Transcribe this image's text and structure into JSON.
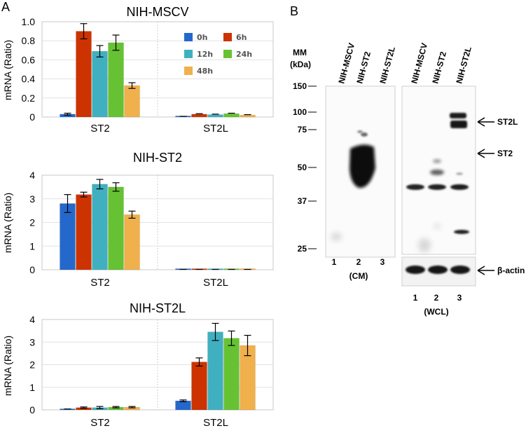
{
  "panel_a_label": "A",
  "panel_b_label": "B",
  "legend": [
    {
      "label": "0h",
      "color": "#2468cc"
    },
    {
      "label": "6h",
      "color": "#cc3300"
    },
    {
      "label": "12h",
      "color": "#40b0c0"
    },
    {
      "label": "24h",
      "color": "#66c233"
    },
    {
      "label": "48h",
      "color": "#f0b04c"
    }
  ],
  "chart_data": [
    {
      "type": "bar",
      "title": "NIH-MSCV",
      "ylabel": "mRNA (Ratio)",
      "xlabel": "",
      "categories": [
        "ST2",
        "ST2L"
      ],
      "ylim": [
        0,
        1.0
      ],
      "yticks": [
        "0",
        "0.2",
        "0.4",
        "0.6",
        "0.8",
        "1.0"
      ],
      "ytick_values": [
        0,
        0.2,
        0.4,
        0.6,
        0.8,
        1.0
      ],
      "series": [
        {
          "name": "0h",
          "values": [
            0.03,
            0.005
          ],
          "errors": [
            0.01,
            0.002
          ]
        },
        {
          "name": "6h",
          "values": [
            0.9,
            0.03
          ],
          "errors": [
            0.08,
            0.005
          ]
        },
        {
          "name": "12h",
          "values": [
            0.69,
            0.025
          ],
          "errors": [
            0.06,
            0.005
          ]
        },
        {
          "name": "24h",
          "values": [
            0.78,
            0.035
          ],
          "errors": [
            0.08,
            0.005
          ]
        },
        {
          "name": "48h",
          "values": [
            0.33,
            0.02
          ],
          "errors": [
            0.03,
            0.005
          ]
        }
      ]
    },
    {
      "type": "bar",
      "title": "NIH-ST2",
      "ylabel": "mRNA (Ratio)",
      "xlabel": "",
      "categories": [
        "ST2",
        "ST2L"
      ],
      "ylim": [
        0,
        4
      ],
      "yticks": [
        "0",
        "1",
        "2",
        "3",
        "4"
      ],
      "ytick_values": [
        0,
        1,
        2,
        3,
        4
      ],
      "series": [
        {
          "name": "0h",
          "values": [
            2.8,
            0.01
          ],
          "errors": [
            0.38,
            0.005
          ]
        },
        {
          "name": "6h",
          "values": [
            3.18,
            0.01
          ],
          "errors": [
            0.1,
            0.005
          ]
        },
        {
          "name": "12h",
          "values": [
            3.62,
            0.01
          ],
          "errors": [
            0.2,
            0.005
          ]
        },
        {
          "name": "24h",
          "values": [
            3.5,
            0.01
          ],
          "errors": [
            0.18,
            0.005
          ]
        },
        {
          "name": "48h",
          "values": [
            2.33,
            0.01
          ],
          "errors": [
            0.15,
            0.005
          ]
        }
      ]
    },
    {
      "type": "bar",
      "title": "NIH-ST2L",
      "ylabel": "mRNA (Ratio)",
      "xlabel": "",
      "categories": [
        "ST2",
        "ST2L"
      ],
      "ylim": [
        0,
        4
      ],
      "yticks": [
        "0",
        "1",
        "2",
        "3",
        "4"
      ],
      "ytick_values": [
        0,
        1,
        2,
        3,
        4
      ],
      "series": [
        {
          "name": "0h",
          "values": [
            0.03,
            0.4
          ],
          "errors": [
            0.01,
            0.04
          ]
        },
        {
          "name": "6h",
          "values": [
            0.1,
            2.12
          ],
          "errors": [
            0.03,
            0.18
          ]
        },
        {
          "name": "12h",
          "values": [
            0.1,
            3.45
          ],
          "errors": [
            0.05,
            0.38
          ]
        },
        {
          "name": "24h",
          "values": [
            0.12,
            3.17
          ],
          "errors": [
            0.03,
            0.32
          ]
        },
        {
          "name": "48h",
          "values": [
            0.12,
            2.85
          ],
          "errors": [
            0.03,
            0.45
          ]
        }
      ]
    }
  ],
  "blot": {
    "mm_header": "MM",
    "mm_unit": "(kDa)",
    "markers": [
      "150",
      "100",
      "75",
      "50",
      "37",
      "25"
    ],
    "cm_lanes": [
      "NIH-MSCV",
      "NIH-ST2",
      "NIH-ST2L"
    ],
    "wcl_lanes": [
      "NIH-MSCV",
      "NIH-ST2",
      "NIH-ST2L"
    ],
    "cm_numbers": [
      "1",
      "2",
      "3"
    ],
    "wcl_numbers": [
      "1",
      "2",
      "3"
    ],
    "cm_label": "(CM)",
    "wcl_label": "(WCL)",
    "arrow_st2l": "ST2L",
    "arrow_st2": "ST2",
    "arrow_actin": "β-actin"
  }
}
